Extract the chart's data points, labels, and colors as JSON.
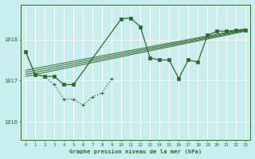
{
  "title": "Graphe pression niveau de la mer (hPa)",
  "bg_color": "#c8eef0",
  "grid_color": "#b0d8d8",
  "line_color": "#2d6a2d",
  "xlim": [
    -0.5,
    23.5
  ],
  "ylim": [
    1015.55,
    1018.85
  ],
  "yticks": [
    1016,
    1017,
    1018
  ],
  "xticks": [
    0,
    1,
    2,
    3,
    4,
    5,
    6,
    7,
    8,
    9,
    10,
    11,
    12,
    13,
    14,
    15,
    16,
    17,
    18,
    19,
    20,
    21,
    22,
    23
  ],
  "series_dotted": {
    "x": [
      0,
      1,
      2,
      3,
      4,
      5,
      6,
      7,
      8,
      9
    ],
    "y": [
      1017.7,
      1017.15,
      1017.1,
      1016.9,
      1016.55,
      1016.55,
      1016.4,
      1016.6,
      1016.7,
      1017.05
    ]
  },
  "series_straight1": {
    "x": [
      0,
      23
    ],
    "y": [
      1017.1,
      1018.2
    ]
  },
  "series_straight2": {
    "x": [
      0,
      23
    ],
    "y": [
      1017.15,
      1018.22
    ]
  },
  "series_straight3": {
    "x": [
      0,
      23
    ],
    "y": [
      1017.2,
      1018.24
    ]
  },
  "series_straight4": {
    "x": [
      0,
      23
    ],
    "y": [
      1017.25,
      1018.26
    ]
  },
  "series_spike": {
    "x": [
      0,
      1,
      2,
      3,
      4,
      5,
      10,
      11,
      12,
      13,
      14,
      15,
      16,
      17,
      18,
      19,
      20,
      21,
      22,
      23
    ],
    "y": [
      1017.7,
      1017.15,
      1017.1,
      1017.1,
      1016.9,
      1016.9,
      1018.5,
      1018.52,
      1018.3,
      1017.55,
      1017.5,
      1017.5,
      1017.05,
      1017.5,
      1017.45,
      1018.1,
      1018.2,
      1018.2,
      1018.22,
      1018.22
    ]
  }
}
